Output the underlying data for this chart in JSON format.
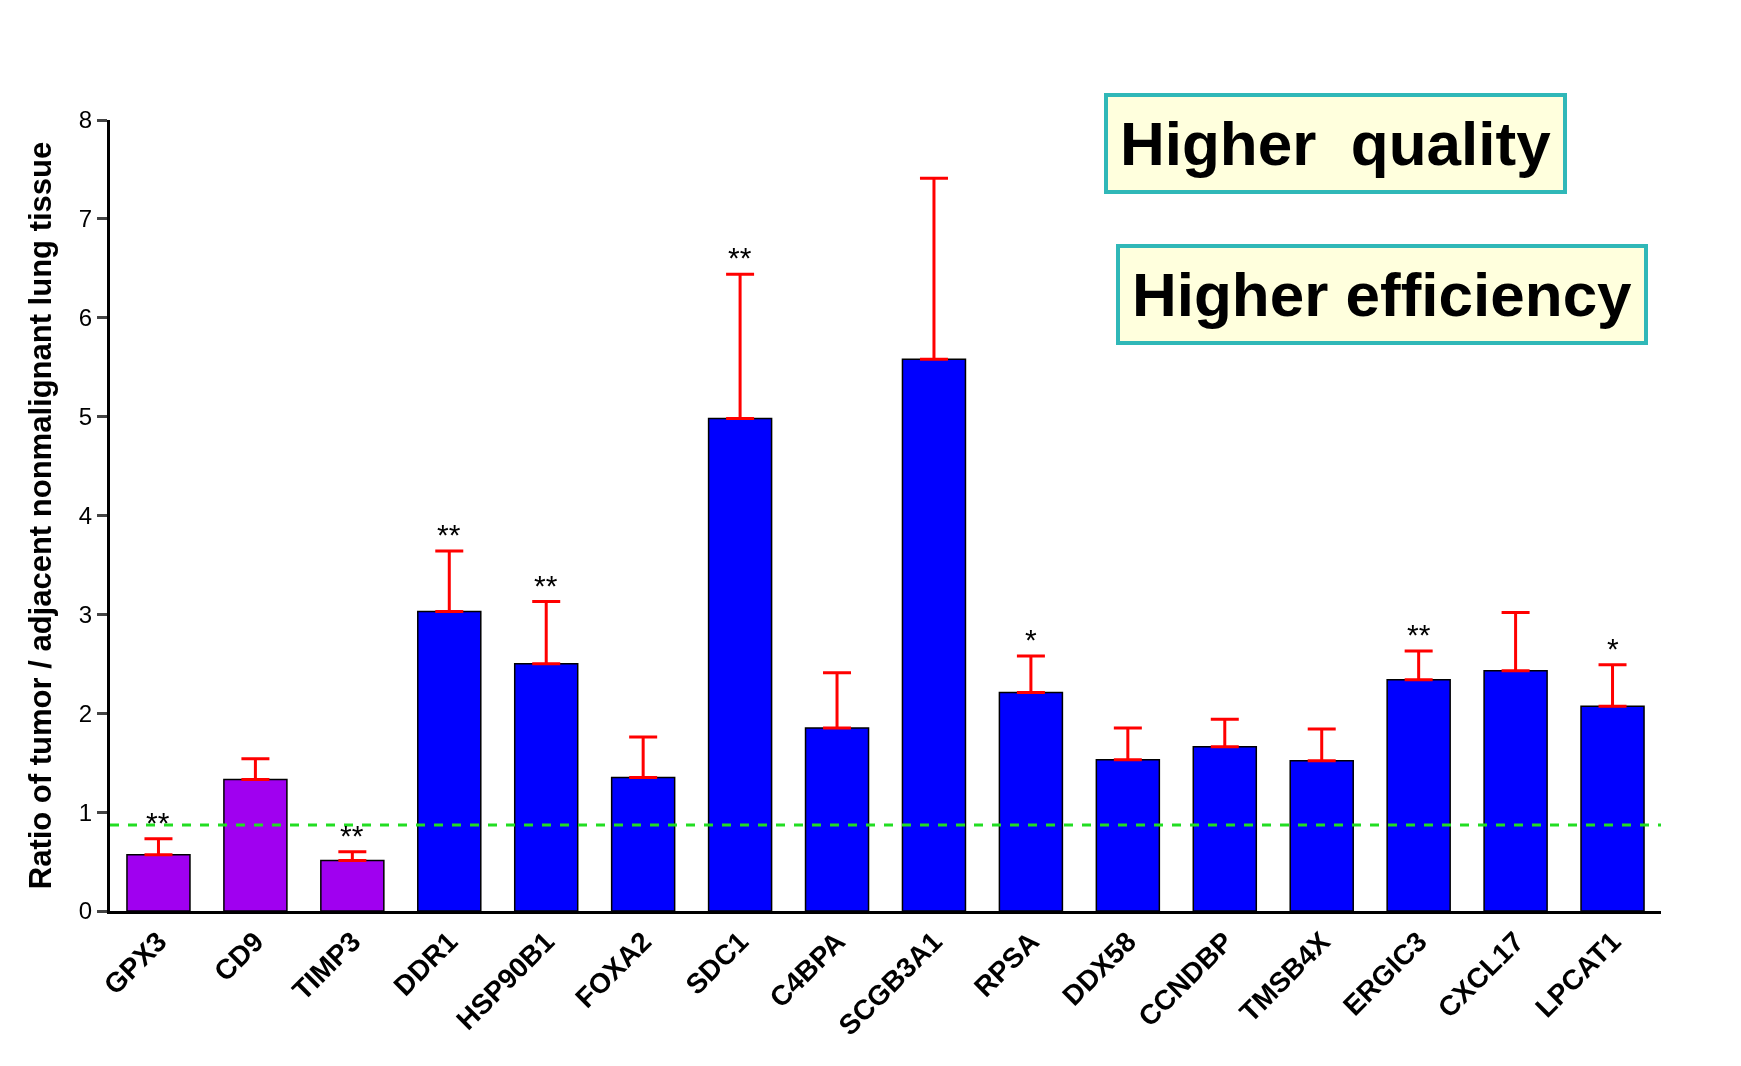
{
  "chart_data": {
    "type": "bar",
    "ylabel": "Ratio of tumor / adjacent nonmalignant lung tissue",
    "categories": [
      "GPX3",
      "CD9",
      "TIMP3",
      "DDR1",
      "HSP90B1",
      "FOXA2",
      "SDC1",
      "C4BPA",
      "SCGB3A1",
      "RPSA",
      "DDX58",
      "CCNDBP",
      "TMSB4X",
      "ERGIC3",
      "CXCL17",
      "LPCAT1"
    ],
    "values": [
      0.57,
      1.33,
      0.51,
      3.03,
      2.5,
      1.35,
      4.98,
      1.85,
      5.58,
      2.21,
      1.53,
      1.66,
      1.52,
      2.34,
      2.43,
      2.07
    ],
    "errors": [
      [
        0.57,
        0.73
      ],
      [
        1.33,
        1.54
      ],
      [
        0.51,
        0.6
      ],
      [
        3.03,
        3.64
      ],
      [
        2.5,
        3.13
      ],
      [
        1.35,
        1.76
      ],
      [
        4.98,
        6.44
      ],
      [
        1.85,
        2.41
      ],
      [
        5.58,
        7.41
      ],
      [
        2.21,
        2.58
      ],
      [
        1.53,
        1.85
      ],
      [
        1.66,
        1.94
      ],
      [
        1.52,
        1.84
      ],
      [
        2.34,
        2.63
      ],
      [
        2.43,
        3.02
      ],
      [
        2.07,
        2.49
      ]
    ],
    "colors": [
      "#a000f0",
      "#a000f0",
      "#a000f0",
      "#0000ff",
      "#0000ff",
      "#0000ff",
      "#0000ff",
      "#0000ff",
      "#0000ff",
      "#0000ff",
      "#0000ff",
      "#0000ff",
      "#0000ff",
      "#0000ff",
      "#0000ff",
      "#0000ff"
    ],
    "ylim": [
      0,
      8
    ],
    "yticks": [
      0,
      1,
      2,
      3,
      4,
      5,
      6,
      7,
      8
    ],
    "grid": false,
    "ref_lines": [
      {
        "axis": "y",
        "value": 0.87,
        "color": "#22dd22",
        "line_style": "dashed"
      }
    ],
    "annotations": [
      {
        "text": "**",
        "x": "GPX3",
        "y": 0.73
      },
      {
        "text": "**",
        "x": "TIMP3",
        "y": 0.6
      },
      {
        "text": "**",
        "x": "DDR1",
        "y": 3.64
      },
      {
        "text": "**",
        "x": "HSP90B1",
        "y": 3.13
      },
      {
        "text": "**",
        "x": "SDC1",
        "y": 6.44
      },
      {
        "text": "*",
        "x": "RPSA",
        "y": 2.58
      },
      {
        "text": "**",
        "x": "ERGIC3",
        "y": 2.63
      },
      {
        "text": "*",
        "x": "LPCAT1",
        "y": 2.49
      },
      "Higher  quality",
      "Higher efficiency"
    ]
  }
}
